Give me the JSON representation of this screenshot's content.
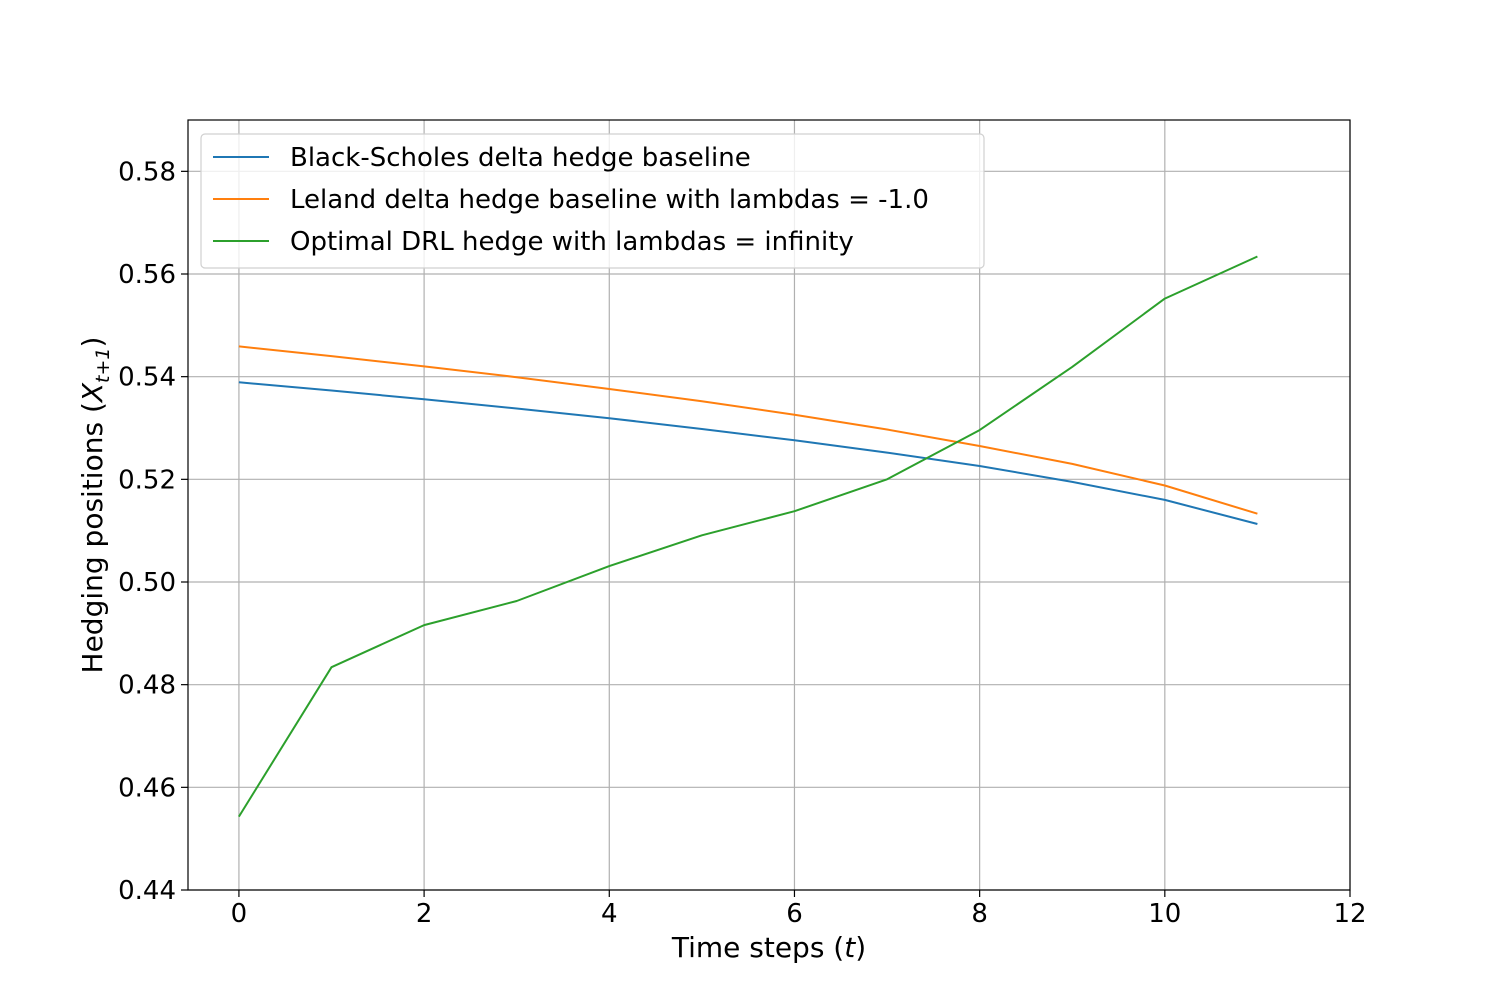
{
  "chart_data": {
    "type": "line",
    "title": "",
    "xlabel": {
      "prefix": "Time steps (",
      "var": "t",
      "suffix": ")"
    },
    "ylabel": {
      "prefix": "Hedging positions (",
      "var": "X",
      "sub": "t+1",
      "suffix": ")"
    },
    "xlim": [
      -0.55,
      12
    ],
    "ylim": [
      0.44,
      0.59
    ],
    "xticks": [
      0,
      2,
      4,
      6,
      8,
      10,
      12
    ],
    "xtick_labels": [
      "0",
      "2",
      "4",
      "6",
      "8",
      "10",
      "12"
    ],
    "yticks": [
      0.44,
      0.46,
      0.48,
      0.5,
      0.52,
      0.54,
      0.56,
      0.58
    ],
    "ytick_labels": [
      "0.44",
      "0.46",
      "0.48",
      "0.50",
      "0.52",
      "0.54",
      "0.56",
      "0.58"
    ],
    "grid": true,
    "legend_position": "top-left",
    "x": [
      0,
      1,
      2,
      3,
      4,
      5,
      6,
      7,
      8,
      9,
      10,
      11
    ],
    "series": [
      {
        "name": "Black-Scholes delta hedge baseline",
        "color": "#1f77b4",
        "values": [
          0.5389,
          0.5373,
          0.5356,
          0.5338,
          0.5319,
          0.5298,
          0.5276,
          0.5252,
          0.5226,
          0.5195,
          0.516,
          0.5113
        ]
      },
      {
        "name": "Leland delta hedge baseline with lambdas = -1.0",
        "color": "#ff7f0e",
        "values": [
          0.5459,
          0.544,
          0.542,
          0.5399,
          0.5376,
          0.5352,
          0.5326,
          0.5297,
          0.5265,
          0.523,
          0.5188,
          0.5133
        ]
      },
      {
        "name": "Optimal DRL hedge with lambdas = infinity",
        "color": "#2ca02c",
        "values": [
          0.4543,
          0.4834,
          0.4916,
          0.4963,
          0.5031,
          0.5091,
          0.5138,
          0.52,
          0.5296,
          0.5419,
          0.5552,
          0.5634
        ]
      }
    ]
  }
}
